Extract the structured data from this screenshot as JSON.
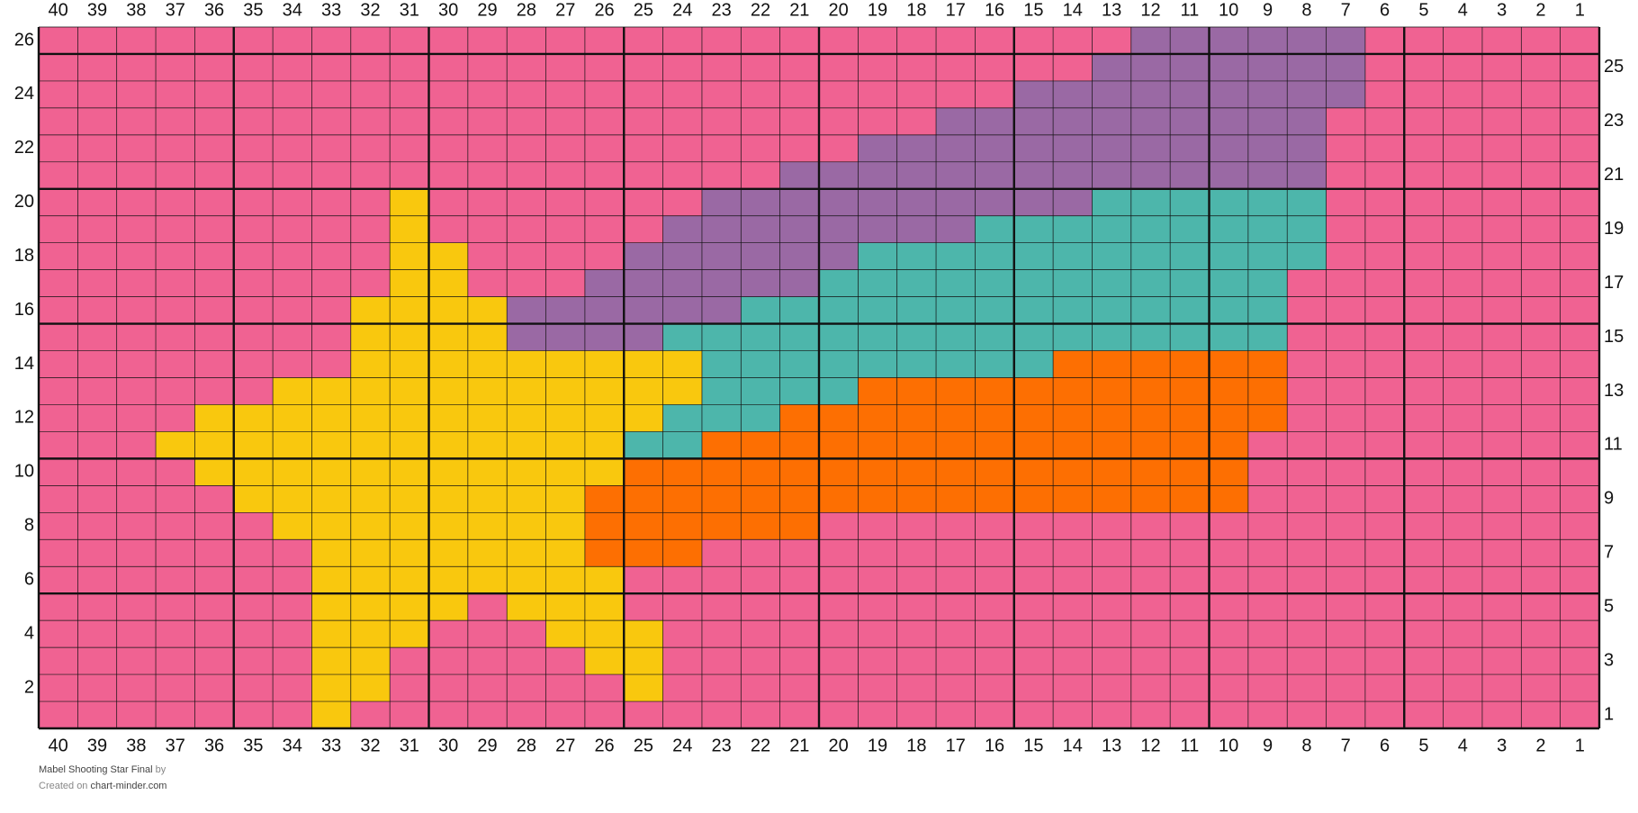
{
  "chart_data": {
    "type": "grid",
    "colors": {
      "p": "#f06292",
      "u": "#9a69a4",
      "t": "#4db6ab",
      "y": "#f9c80e",
      "o": "#fd6f02"
    },
    "column_labels": [
      40,
      39,
      38,
      37,
      36,
      35,
      34,
      33,
      32,
      31,
      30,
      29,
      28,
      27,
      26,
      25,
      24,
      23,
      22,
      21,
      20,
      19,
      18,
      17,
      16,
      15,
      14,
      13,
      12,
      11,
      10,
      9,
      8,
      7,
      6,
      5,
      4,
      3,
      2,
      1
    ],
    "row_labels_left": [
      26,
      24,
      22,
      20,
      18,
      16,
      14,
      12,
      10,
      8,
      6,
      4,
      2
    ],
    "row_labels_right": [
      25,
      23,
      21,
      19,
      17,
      15,
      13,
      11,
      9,
      7,
      5,
      3,
      1
    ],
    "rows": [
      [
        [
          28,
          "p"
        ],
        [
          6,
          "u"
        ],
        [
          6,
          "p"
        ]
      ],
      [
        [
          27,
          "p"
        ],
        [
          7,
          "u"
        ],
        [
          6,
          "p"
        ]
      ],
      [
        [
          25,
          "p"
        ],
        [
          9,
          "u"
        ],
        [
          6,
          "p"
        ]
      ],
      [
        [
          23,
          "p"
        ],
        [
          10,
          "u"
        ],
        [
          7,
          "p"
        ]
      ],
      [
        [
          21,
          "p"
        ],
        [
          12,
          "u"
        ],
        [
          7,
          "p"
        ]
      ],
      [
        [
          19,
          "p"
        ],
        [
          14,
          "u"
        ],
        [
          7,
          "p"
        ]
      ],
      [
        [
          9,
          "p"
        ],
        [
          1,
          "y"
        ],
        [
          7,
          "p"
        ],
        [
          10,
          "u"
        ],
        [
          6,
          "t"
        ],
        [
          7,
          "p"
        ]
      ],
      [
        [
          9,
          "p"
        ],
        [
          1,
          "y"
        ],
        [
          6,
          "p"
        ],
        [
          8,
          "u"
        ],
        [
          9,
          "t"
        ],
        [
          7,
          "p"
        ]
      ],
      [
        [
          9,
          "p"
        ],
        [
          2,
          "y"
        ],
        [
          4,
          "p"
        ],
        [
          6,
          "u"
        ],
        [
          12,
          "t"
        ],
        [
          7,
          "p"
        ]
      ],
      [
        [
          9,
          "p"
        ],
        [
          2,
          "y"
        ],
        [
          3,
          "p"
        ],
        [
          6,
          "u"
        ],
        [
          12,
          "t"
        ],
        [
          8,
          "p"
        ]
      ],
      [
        [
          8,
          "p"
        ],
        [
          4,
          "y"
        ],
        [
          6,
          "u"
        ],
        [
          14,
          "t"
        ],
        [
          8,
          "p"
        ]
      ],
      [
        [
          8,
          "p"
        ],
        [
          4,
          "y"
        ],
        [
          4,
          "u"
        ],
        [
          16,
          "t"
        ],
        [
          8,
          "p"
        ]
      ],
      [
        [
          8,
          "p"
        ],
        [
          9,
          "y"
        ],
        [
          9,
          "t"
        ],
        [
          6,
          "o"
        ],
        [
          8,
          "p"
        ]
      ],
      [
        [
          6,
          "p"
        ],
        [
          11,
          "y"
        ],
        [
          4,
          "t"
        ],
        [
          11,
          "o"
        ],
        [
          8,
          "p"
        ]
      ],
      [
        [
          4,
          "p"
        ],
        [
          12,
          "y"
        ],
        [
          3,
          "t"
        ],
        [
          13,
          "o"
        ],
        [
          8,
          "p"
        ]
      ],
      [
        [
          3,
          "p"
        ],
        [
          12,
          "y"
        ],
        [
          2,
          "t"
        ],
        [
          14,
          "o"
        ],
        [
          9,
          "p"
        ]
      ],
      [
        [
          4,
          "p"
        ],
        [
          11,
          "y"
        ],
        [
          16,
          "o"
        ],
        [
          9,
          "p"
        ]
      ],
      [
        [
          5,
          "p"
        ],
        [
          9,
          "y"
        ],
        [
          17,
          "o"
        ],
        [
          9,
          "p"
        ]
      ],
      [
        [
          6,
          "p"
        ],
        [
          8,
          "y"
        ],
        [
          6,
          "o"
        ],
        [
          20,
          "p"
        ]
      ],
      [
        [
          7,
          "p"
        ],
        [
          7,
          "y"
        ],
        [
          3,
          "o"
        ],
        [
          23,
          "p"
        ]
      ],
      [
        [
          7,
          "p"
        ],
        [
          8,
          "y"
        ],
        [
          25,
          "p"
        ]
      ],
      [
        [
          7,
          "p"
        ],
        [
          4,
          "y"
        ],
        [
          1,
          "p"
        ],
        [
          3,
          "y"
        ],
        [
          25,
          "p"
        ]
      ],
      [
        [
          7,
          "p"
        ],
        [
          3,
          "y"
        ],
        [
          3,
          "p"
        ],
        [
          3,
          "y"
        ],
        [
          24,
          "p"
        ]
      ],
      [
        [
          7,
          "p"
        ],
        [
          2,
          "y"
        ],
        [
          5,
          "p"
        ],
        [
          2,
          "y"
        ],
        [
          24,
          "p"
        ]
      ],
      [
        [
          7,
          "p"
        ],
        [
          2,
          "y"
        ],
        [
          6,
          "p"
        ],
        [
          1,
          "y"
        ],
        [
          24,
          "p"
        ]
      ],
      [
        [
          7,
          "p"
        ],
        [
          1,
          "y"
        ],
        [
          32,
          "p"
        ]
      ]
    ],
    "footer": {
      "title": "Mabel Shooting Star Final",
      "by": "by",
      "created": "Created on",
      "site": "chart-minder.com"
    }
  }
}
